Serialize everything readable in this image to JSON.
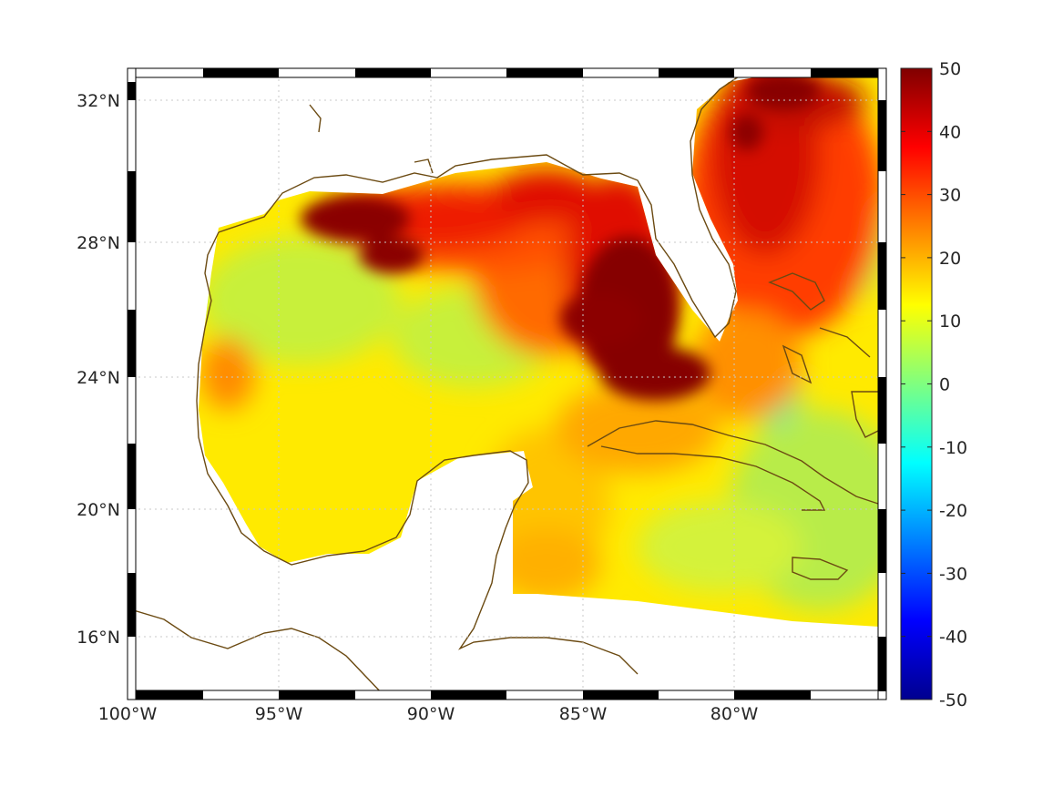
{
  "map": {
    "projection": "mercator",
    "lon_range": [
      -100,
      -75
    ],
    "lat_range": [
      14.2,
      32.9
    ],
    "lon_ticks": [
      {
        "value": -100,
        "label": "100°W"
      },
      {
        "value": -95,
        "label": "95°W"
      },
      {
        "value": -90,
        "label": "90°W"
      },
      {
        "value": -85,
        "label": "85°W"
      },
      {
        "value": -80,
        "label": "80°W"
      }
    ],
    "lat_ticks": [
      {
        "value": 32,
        "label": "32°N"
      },
      {
        "value": 28,
        "label": "28°N"
      },
      {
        "value": 24,
        "label": "24°N"
      },
      {
        "value": 20,
        "label": "20°N"
      },
      {
        "value": 16,
        "label": "16°N"
      }
    ],
    "grid": true,
    "frame": "black-white checkered border",
    "coastline_color": "#6b4a12"
  },
  "colorbar": {
    "colormap": "jet",
    "min": -50,
    "max": 50,
    "ticks": [
      {
        "value": 50,
        "label": "50"
      },
      {
        "value": 40,
        "label": "40"
      },
      {
        "value": 30,
        "label": "30"
      },
      {
        "value": 20,
        "label": "20"
      },
      {
        "value": 10,
        "label": "10"
      },
      {
        "value": 0,
        "label": "0"
      },
      {
        "value": -10,
        "label": "-10"
      },
      {
        "value": -20,
        "label": "-20"
      },
      {
        "value": -30,
        "label": "-30"
      },
      {
        "value": -40,
        "label": "-40"
      },
      {
        "value": -50,
        "label": "-50"
      }
    ]
  }
}
